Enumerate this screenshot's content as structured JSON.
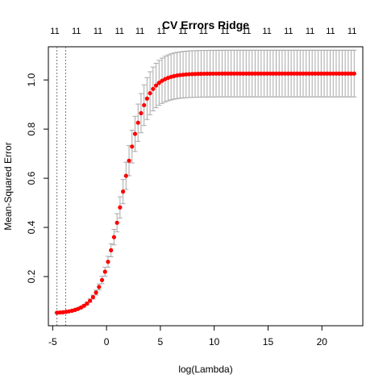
{
  "chart_data": {
    "type": "scatter",
    "title": "CV Errors Ridge",
    "xlabel": "log(Lambda)",
    "ylabel": "Mean-Squared Error",
    "xlim": [
      -5.4,
      23.8
    ],
    "ylim": [
      0.0,
      1.135
    ],
    "x_ticks": [
      -5,
      0,
      5,
      10,
      15,
      20
    ],
    "y_ticks": [
      0.2,
      0.4,
      0.6,
      0.8,
      1.0
    ],
    "top_axis_labels": [
      "11",
      "11",
      "11",
      "11",
      "11",
      "11",
      "11",
      "11",
      "11",
      "11",
      "11",
      "11",
      "11",
      "11",
      "11"
    ],
    "vertical_lines_x": [
      -4.6,
      -3.8
    ],
    "point_color": "#ff0000",
    "errorbar_color": "#a8a8a8",
    "curve": {
      "x_start": -4.6,
      "x_end": 23.0,
      "n_points": 100,
      "min_mse": 0.05,
      "max_mse": 1.026,
      "midpoint_x": 1.5,
      "slope": 0.95,
      "error_max": 0.095
    },
    "top_x_positions": [
      -4.8,
      -2.8,
      -0.8,
      1.2,
      3.1,
      5.1,
      7.1,
      9.0,
      11.0,
      13.0,
      14.9,
      16.9,
      18.9,
      20.8,
      22.8
    ]
  }
}
